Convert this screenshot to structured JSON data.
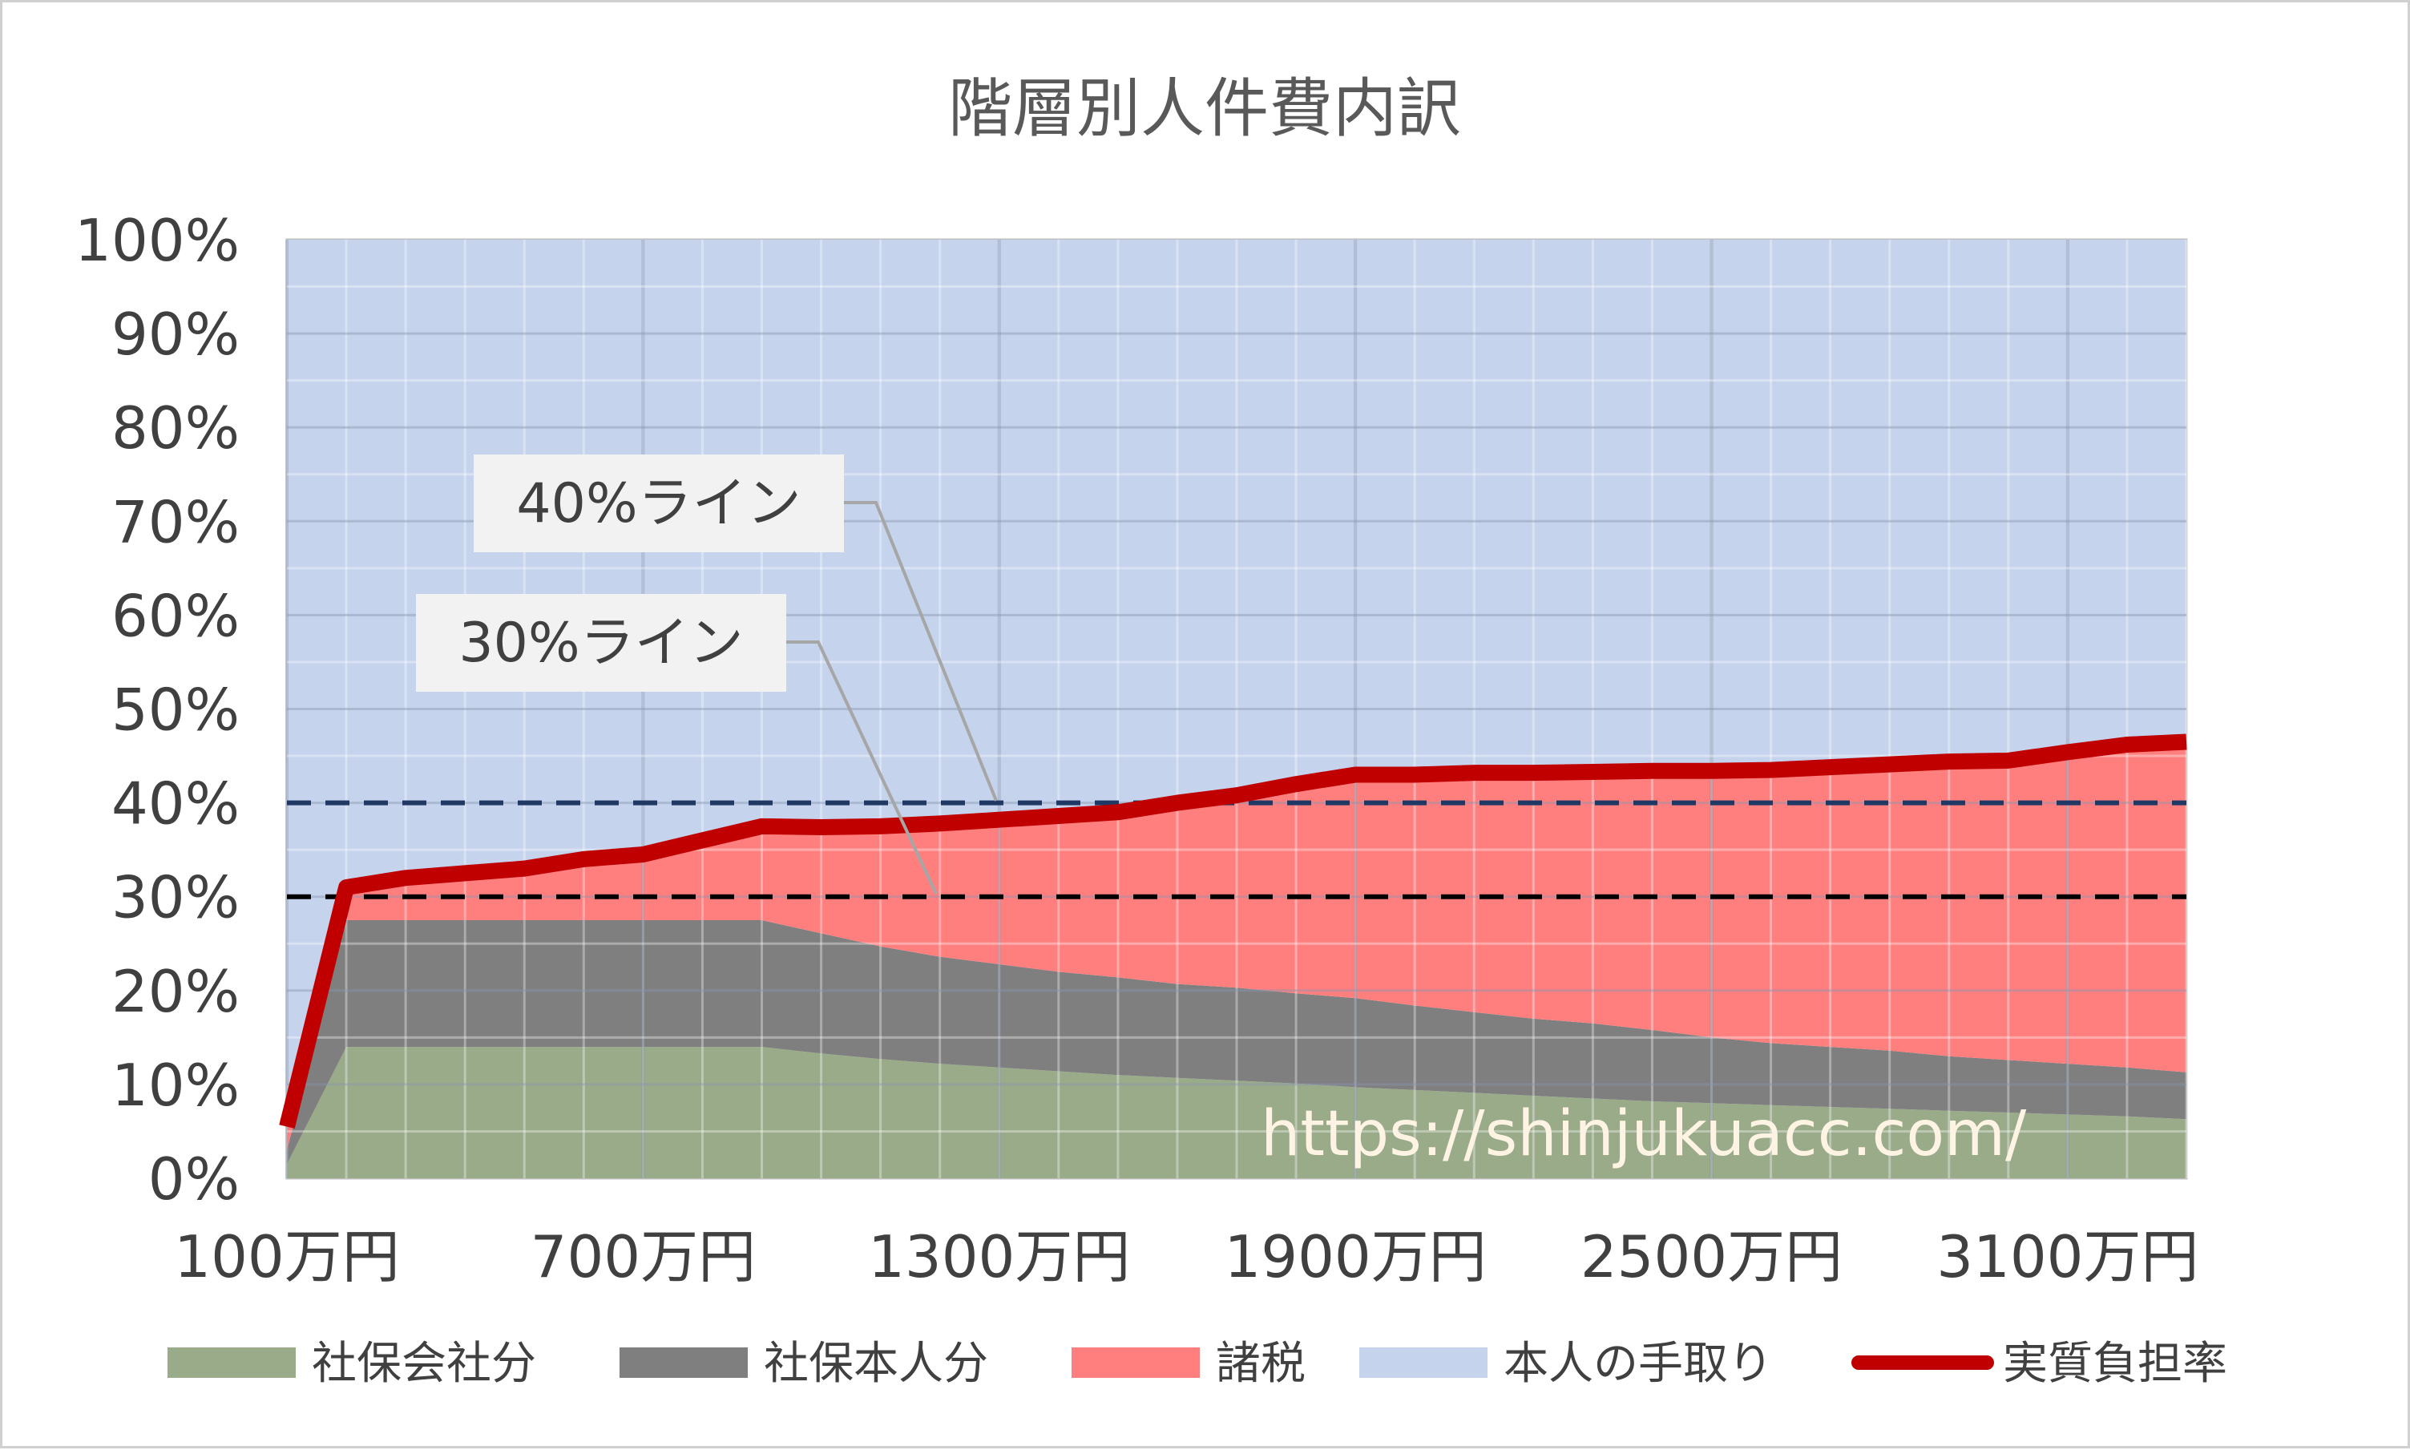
{
  "chart_data": {
    "type": "area",
    "title": "階層別人件費内訳",
    "xlabel": "",
    "ylabel": "",
    "ylim": [
      0,
      100
    ],
    "y_ticks": [
      "0%",
      "10%",
      "20%",
      "30%",
      "40%",
      "50%",
      "60%",
      "70%",
      "80%",
      "90%",
      "100%"
    ],
    "x_tick_labels": [
      "100万円",
      "700万円",
      "1300万円",
      "1900万円",
      "2500万円",
      "3100万円"
    ],
    "x": [
      100,
      200,
      300,
      400,
      500,
      600,
      700,
      800,
      900,
      1000,
      1100,
      1200,
      1300,
      1400,
      1500,
      1600,
      1700,
      1800,
      1900,
      2000,
      2100,
      2200,
      2300,
      2400,
      2500,
      2600,
      2700,
      2800,
      2900,
      3000,
      3100,
      3200,
      3300
    ],
    "stacked": true,
    "series": [
      {
        "name": "社保会社分",
        "type": "area",
        "color": "#9aab8a",
        "values": [
          1.5,
          14,
          14,
          14,
          14,
          14,
          14,
          14,
          14,
          13.3,
          12.7,
          12.2,
          11.8,
          11.4,
          11.0,
          10.7,
          10.4,
          10.1,
          9.7,
          9.4,
          9.1,
          8.8,
          8.5,
          8.2,
          8.0,
          7.8,
          7.6,
          7.4,
          7.2,
          7.0,
          6.8,
          6.6,
          6.3
        ]
      },
      {
        "name": "社保本人分",
        "type": "area",
        "color": "#7f7f7f",
        "values": [
          1.5,
          13.5,
          13.5,
          13.5,
          13.5,
          13.5,
          13.5,
          13.5,
          13.5,
          12.8,
          12.0,
          11.4,
          11.0,
          10.6,
          10.4,
          10.0,
          9.9,
          9.6,
          9.5,
          9.0,
          8.6,
          8.2,
          8.0,
          7.6,
          7.0,
          6.6,
          6.4,
          6.2,
          5.8,
          5.6,
          5.4,
          5.2,
          5.0
        ]
      },
      {
        "name": "諸税",
        "type": "area",
        "color": "#ff7f7f",
        "values": [
          2.5,
          3.5,
          4.5,
          5,
          5.5,
          6.5,
          7,
          8.5,
          10,
          11.3,
          12.8,
          14.2,
          15.4,
          16.6,
          17.6,
          19.3,
          20.5,
          22.3,
          23.8,
          24.6,
          25.5,
          26.2,
          26.8,
          27.6,
          28.4,
          29.1,
          29.8,
          30.5,
          31.4,
          31.9,
          33.2,
          34.4,
          35.2
        ]
      },
      {
        "name": "本人の手取り",
        "type": "area",
        "color": "#c5d3ed",
        "values": [
          94.5,
          69,
          68,
          67.5,
          67,
          66,
          65.5,
          64,
          62.5,
          62.6,
          62.5,
          62.2,
          61.8,
          61.4,
          61.0,
          60.0,
          59.2,
          58.0,
          57.0,
          57.0,
          56.8,
          56.8,
          56.7,
          56.6,
          56.6,
          56.5,
          56.2,
          55.9,
          55.6,
          55.5,
          54.6,
          53.8,
          53.5
        ]
      },
      {
        "name": "実質負担率",
        "type": "line",
        "color": "#c00000",
        "values": [
          5.5,
          31,
          32,
          32.5,
          33,
          34,
          34.5,
          36,
          37.5,
          37.4,
          37.5,
          37.8,
          38.2,
          38.6,
          39.0,
          40.0,
          40.8,
          42.0,
          43.0,
          43.0,
          43.2,
          43.2,
          43.3,
          43.4,
          43.4,
          43.5,
          43.8,
          44.1,
          44.4,
          44.5,
          45.4,
          46.2,
          46.5
        ]
      }
    ],
    "reference_lines": [
      {
        "label": "40%ライン",
        "value": 40,
        "color": "#1f3864"
      },
      {
        "label": "30%ライン",
        "value": 30,
        "color": "#000000"
      }
    ],
    "annotations": [
      "https://shinjukuacc.com/"
    ],
    "grid": true,
    "legend_position": "bottom"
  }
}
